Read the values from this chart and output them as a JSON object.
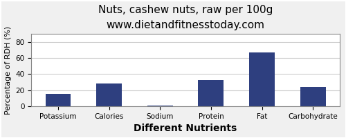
{
  "title": "Nuts, cashew nuts, raw per 100g",
  "subtitle": "www.dietandfitnesstoday.com",
  "xlabel": "Different Nutrients",
  "ylabel": "Percentage of RDH (%)",
  "categories": [
    "Potassium",
    "Calories",
    "Sodium",
    "Protein",
    "Fat",
    "Carbohydrate"
  ],
  "values": [
    15,
    28,
    1,
    33,
    67,
    24
  ],
  "bar_color": "#2e3f7f",
  "ylim": [
    0,
    90
  ],
  "yticks": [
    0,
    20,
    40,
    60,
    80
  ],
  "background_color": "#f0f0f0",
  "plot_bg_color": "#ffffff",
  "title_fontsize": 11,
  "subtitle_fontsize": 9,
  "xlabel_fontsize": 10,
  "ylabel_fontsize": 8,
  "tick_fontsize": 7.5,
  "bar_width": 0.5,
  "grid_color": "#cccccc",
  "border_color": "#888888"
}
